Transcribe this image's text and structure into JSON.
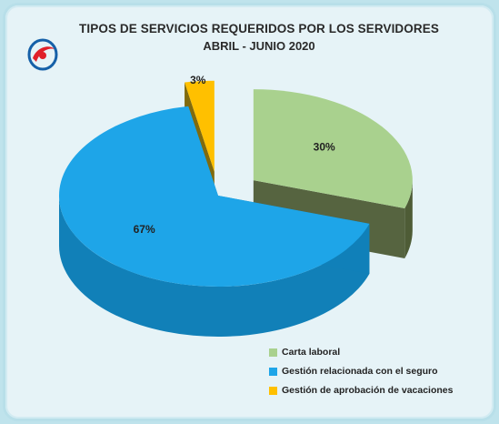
{
  "colors": {
    "background": "#e6f3f7",
    "carta_top": "#a9d18e",
    "carta_side": "#4e5c36",
    "seguro_top": "#1ea5e8",
    "seguro_side": "#1180b8",
    "vacaciones_top": "#ffc000",
    "vacaciones_side": "#7a6200"
  },
  "logo": {
    "icon": "red-blue-swoosh-logo"
  },
  "chart_data": {
    "type": "pie",
    "title": "TIPOS DE SERVICIOS REQUERIDOS POR LOS SERVIDORES",
    "subtitle": "ABRIL - JUNIO 2020",
    "categories": [
      "Carta laboral",
      "Gestión relacionada con el seguro",
      "Gestión de aprobación de vacaciones"
    ],
    "values": [
      30,
      67,
      3
    ],
    "labels": [
      "30%",
      "67%",
      "3%"
    ],
    "exploded": true,
    "style": "3d",
    "legend_position": "bottom-right"
  }
}
